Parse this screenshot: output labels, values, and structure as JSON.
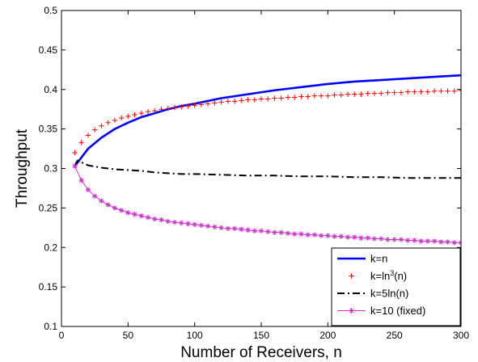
{
  "chart_data": {
    "type": "line",
    "title": "",
    "xlabel": "Number of Receivers, n",
    "ylabel": "Throughput",
    "xlim": [
      0,
      300
    ],
    "ylim": [
      0.1,
      0.5
    ],
    "xticks": [
      0,
      50,
      100,
      150,
      200,
      250,
      300
    ],
    "yticks": [
      0.1,
      0.15,
      0.2,
      0.25,
      0.3,
      0.35,
      0.4,
      0.45,
      0.5
    ],
    "xtick_labels": [
      "0",
      "50",
      "100",
      "150",
      "200",
      "250",
      "300"
    ],
    "ytick_labels": [
      "0.1",
      "0.15",
      "0.2",
      "0.25",
      "0.3",
      "0.35",
      "0.4",
      "0.45",
      "0.5"
    ],
    "grid": false,
    "legend_position": "bottom-right",
    "series": [
      {
        "name": "k=n",
        "legend_main": "k=n",
        "legend_sup": "",
        "legend_tail": "",
        "color": "#0000ff",
        "style": "solid",
        "marker": "none",
        "x": [
          10,
          20,
          30,
          40,
          50,
          60,
          70,
          80,
          90,
          100,
          120,
          140,
          160,
          180,
          200,
          220,
          240,
          260,
          280,
          300
        ],
        "y": [
          0.303,
          0.325,
          0.339,
          0.35,
          0.358,
          0.365,
          0.37,
          0.375,
          0.379,
          0.382,
          0.389,
          0.394,
          0.399,
          0.403,
          0.407,
          0.41,
          0.412,
          0.414,
          0.416,
          0.418
        ]
      },
      {
        "name": "k=ln3(n)",
        "legend_main": "k=ln",
        "legend_sup": "3",
        "legend_tail": "(n)",
        "color": "#ff0000",
        "style": "none",
        "marker": "plus",
        "x": [
          10,
          15,
          20,
          25,
          30,
          35,
          40,
          45,
          50,
          55,
          60,
          65,
          70,
          75,
          80,
          85,
          90,
          95,
          100,
          105,
          110,
          115,
          120,
          125,
          130,
          135,
          140,
          145,
          150,
          155,
          160,
          165,
          170,
          175,
          180,
          185,
          190,
          195,
          200,
          205,
          210,
          215,
          220,
          225,
          230,
          235,
          240,
          245,
          250,
          255,
          260,
          265,
          270,
          275,
          280,
          285,
          290,
          295,
          300
        ],
        "y": [
          0.32,
          0.333,
          0.342,
          0.349,
          0.354,
          0.358,
          0.361,
          0.364,
          0.366,
          0.368,
          0.37,
          0.372,
          0.373,
          0.375,
          0.376,
          0.377,
          0.378,
          0.379,
          0.38,
          0.381,
          0.382,
          0.383,
          0.384,
          0.385,
          0.385,
          0.386,
          0.387,
          0.387,
          0.388,
          0.388,
          0.389,
          0.389,
          0.39,
          0.39,
          0.391,
          0.391,
          0.392,
          0.392,
          0.392,
          0.393,
          0.393,
          0.394,
          0.394,
          0.394,
          0.395,
          0.395,
          0.395,
          0.396,
          0.396,
          0.396,
          0.397,
          0.397,
          0.397,
          0.397,
          0.398,
          0.398,
          0.398,
          0.398,
          0.399
        ]
      },
      {
        "name": "k=5ln(n)",
        "legend_main": "k=5ln(n)",
        "legend_sup": "",
        "legend_tail": "",
        "color": "#000000",
        "style": "dashdot",
        "marker": "none",
        "x": [
          10,
          12,
          14,
          16,
          20,
          30,
          40,
          50,
          60,
          70,
          80,
          90,
          100,
          120,
          140,
          160,
          180,
          200,
          220,
          240,
          260,
          280,
          300
        ],
        "y": [
          0.304,
          0.31,
          0.31,
          0.307,
          0.304,
          0.301,
          0.299,
          0.298,
          0.297,
          0.295,
          0.294,
          0.293,
          0.293,
          0.292,
          0.291,
          0.291,
          0.29,
          0.29,
          0.289,
          0.289,
          0.288,
          0.288,
          0.288
        ]
      },
      {
        "name": "k=10 (fixed)",
        "legend_main": "k=10 (fixed)",
        "legend_sup": "",
        "legend_tail": "",
        "color": "#cc33cc",
        "style": "solid",
        "marker": "star",
        "x": [
          10,
          15,
          20,
          25,
          30,
          35,
          40,
          45,
          50,
          55,
          60,
          65,
          70,
          75,
          80,
          85,
          90,
          95,
          100,
          105,
          110,
          115,
          120,
          125,
          130,
          135,
          140,
          145,
          150,
          155,
          160,
          165,
          170,
          175,
          180,
          185,
          190,
          195,
          200,
          205,
          210,
          215,
          220,
          225,
          230,
          235,
          240,
          245,
          250,
          255,
          260,
          265,
          270,
          275,
          280,
          285,
          290,
          295,
          300
        ],
        "y": [
          0.303,
          0.285,
          0.273,
          0.265,
          0.259,
          0.254,
          0.25,
          0.247,
          0.244,
          0.242,
          0.24,
          0.238,
          0.236,
          0.235,
          0.233,
          0.232,
          0.231,
          0.23,
          0.229,
          0.228,
          0.227,
          0.226,
          0.225,
          0.224,
          0.224,
          0.223,
          0.222,
          0.221,
          0.221,
          0.22,
          0.219,
          0.219,
          0.218,
          0.217,
          0.217,
          0.216,
          0.216,
          0.215,
          0.215,
          0.214,
          0.214,
          0.213,
          0.213,
          0.212,
          0.212,
          0.211,
          0.211,
          0.21,
          0.21,
          0.21,
          0.209,
          0.209,
          0.208,
          0.208,
          0.208,
          0.207,
          0.207,
          0.206,
          0.206
        ]
      }
    ]
  }
}
